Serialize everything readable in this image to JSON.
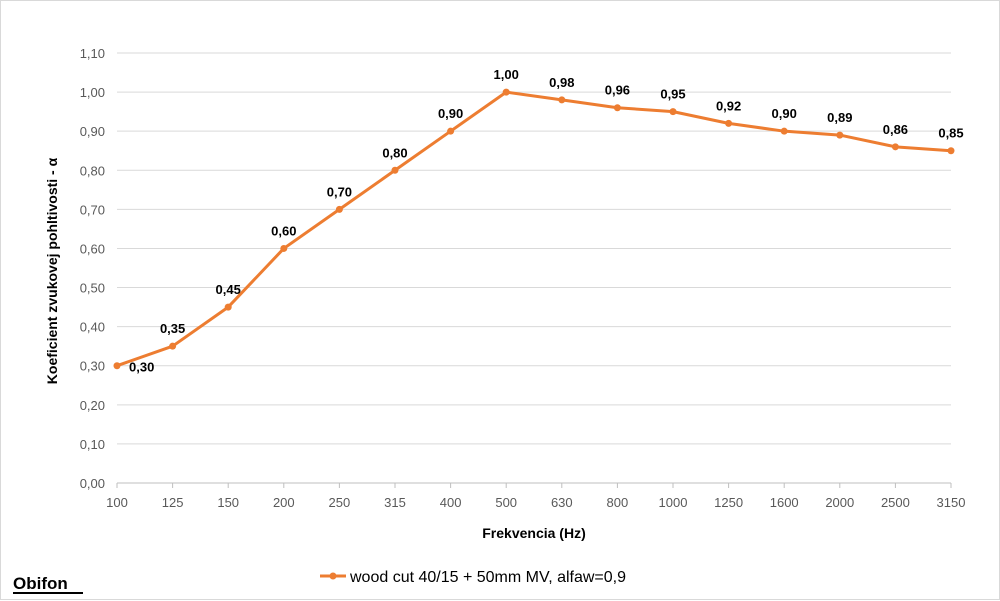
{
  "logo": {
    "text": "Obifon"
  },
  "colors": {
    "series": "#ED7D31",
    "grid": "#D9D9D9",
    "tick": "#595959",
    "axis": "#BFBFBF"
  },
  "chart_data": {
    "type": "line",
    "title": "",
    "xlabel": "Frekvencia (Hz)",
    "ylabel": "Koeficient zvukovej pohltivosti - α",
    "categories": [
      "100",
      "125",
      "150",
      "200",
      "250",
      "315",
      "400",
      "500",
      "630",
      "800",
      "1000",
      "1250",
      "1600",
      "2000",
      "2500",
      "3150"
    ],
    "ylim": [
      0,
      1.1
    ],
    "ytick_labels": [
      "0,00",
      "0,10",
      "0,20",
      "0,30",
      "0,40",
      "0,50",
      "0,60",
      "0,70",
      "0,80",
      "0,90",
      "1,00",
      "1,10"
    ],
    "grid": true,
    "legend": "bottom",
    "series": [
      {
        "name": "wood cut 40/15 + 50mm MV, alfaw=0,9",
        "values": [
          0.3,
          0.35,
          0.45,
          0.6,
          0.7,
          0.8,
          0.9,
          1.0,
          0.98,
          0.96,
          0.95,
          0.92,
          0.9,
          0.89,
          0.86,
          0.85
        ],
        "labels": [
          "0,30",
          "0,35",
          "0,45",
          "0,60",
          "0,70",
          "0,80",
          "0,90",
          "1,00",
          "0,98",
          "0,96",
          "0,95",
          "0,92",
          "0,90",
          "0,89",
          "0,86",
          "0,85"
        ]
      }
    ]
  }
}
